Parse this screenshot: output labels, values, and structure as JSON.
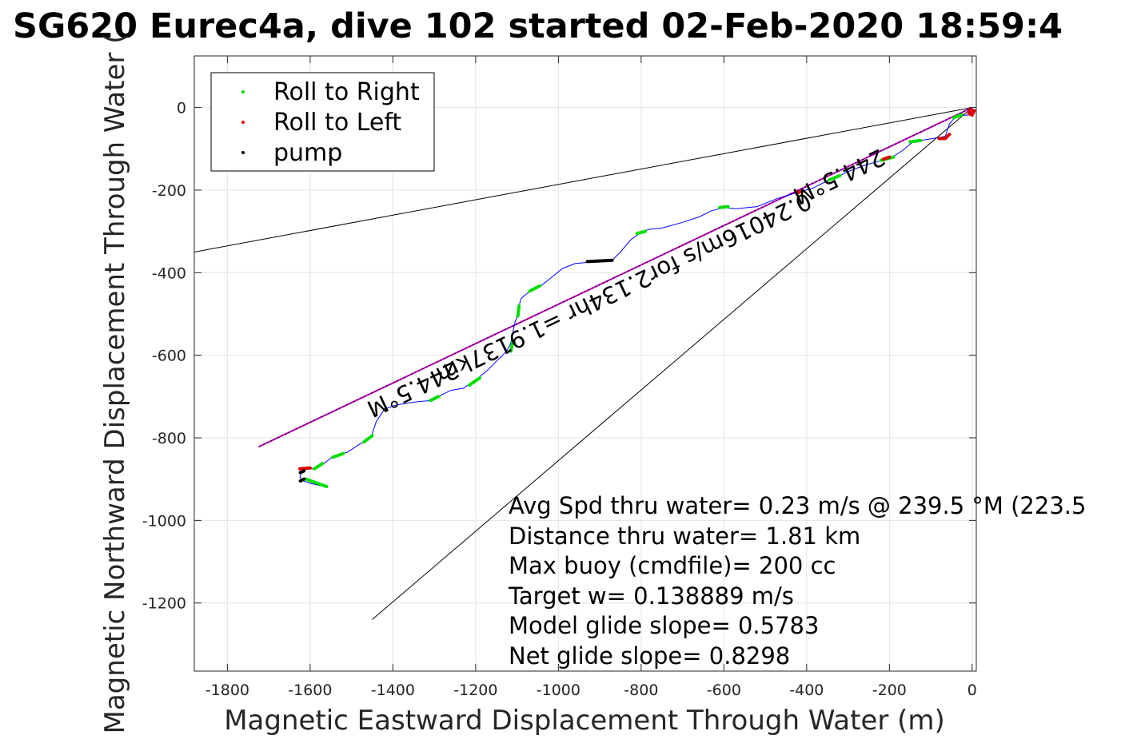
{
  "title": "SG620 Eurec4a, dive 102 started 02-Feb-2020 18:59:4",
  "chart_data": {
    "type": "line",
    "xlabel": "Magnetic Eastward Displacement Through Water (m)",
    "ylabel": "Magnetic Northward Displacement Through Water (",
    "xlim": [
      -1880,
      10
    ],
    "ylim": [
      -1365,
      125
    ],
    "xticks": [
      "-1800",
      "-1600",
      "-1400",
      "-1200",
      "-1000",
      "-800",
      "-600",
      "-400",
      "-200",
      "0"
    ],
    "yticks": [
      "0",
      "-200",
      "-400",
      "-600",
      "-800",
      "-1000",
      "-1200"
    ],
    "grid": true,
    "legend": {
      "placement": "top-left",
      "entries": [
        {
          "label": "Roll to Right",
          "color": "#00dd00"
        },
        {
          "label": "Roll to Left",
          "color": "#dd0000"
        },
        {
          "label": "pump",
          "color": "#000000"
        }
      ]
    },
    "track": {
      "color": "#0000ff",
      "points": [
        [
          0,
          -10
        ],
        [
          -10,
          -18
        ],
        [
          -30,
          -20
        ],
        [
          -45,
          -28
        ],
        [
          -55,
          -40
        ],
        [
          -60,
          -55
        ],
        [
          -65,
          -70
        ],
        [
          -95,
          -75
        ],
        [
          -125,
          -80
        ],
        [
          -145,
          -85
        ],
        [
          -170,
          -105
        ],
        [
          -200,
          -125
        ],
        [
          -225,
          -130
        ],
        [
          -260,
          -140
        ],
        [
          -300,
          -155
        ],
        [
          -320,
          -165
        ],
        [
          -345,
          -175
        ],
        [
          -385,
          -195
        ],
        [
          -430,
          -208
        ],
        [
          -470,
          -220
        ],
        [
          -520,
          -240
        ],
        [
          -570,
          -245
        ],
        [
          -600,
          -242
        ],
        [
          -630,
          -250
        ],
        [
          -660,
          -265
        ],
        [
          -700,
          -278
        ],
        [
          -750,
          -292
        ],
        [
          -780,
          -295
        ],
        [
          -800,
          -302
        ],
        [
          -825,
          -320
        ],
        [
          -850,
          -350
        ],
        [
          -870,
          -370
        ],
        [
          -905,
          -372
        ],
        [
          -930,
          -375
        ],
        [
          -960,
          -378
        ],
        [
          -990,
          -390
        ],
        [
          -1015,
          -410
        ],
        [
          -1040,
          -430
        ],
        [
          -1060,
          -440
        ],
        [
          -1075,
          -450
        ],
        [
          -1090,
          -462
        ],
        [
          -1095,
          -480
        ],
        [
          -1097,
          -500
        ],
        [
          -1105,
          -520
        ],
        [
          -1110,
          -545
        ],
        [
          -1115,
          -570
        ],
        [
          -1125,
          -590
        ],
        [
          -1145,
          -610
        ],
        [
          -1170,
          -635
        ],
        [
          -1200,
          -660
        ],
        [
          -1230,
          -680
        ],
        [
          -1260,
          -685
        ],
        [
          -1290,
          -700
        ],
        [
          -1310,
          -710
        ],
        [
          -1335,
          -712
        ],
        [
          -1360,
          -715
        ],
        [
          -1390,
          -720
        ],
        [
          -1420,
          -730
        ],
        [
          -1440,
          -760
        ],
        [
          -1450,
          -790
        ],
        [
          -1460,
          -805
        ],
        [
          -1480,
          -815
        ],
        [
          -1510,
          -835
        ],
        [
          -1545,
          -845
        ],
        [
          -1570,
          -865
        ],
        [
          -1590,
          -875
        ],
        [
          -1605,
          -872
        ],
        [
          -1620,
          -880
        ],
        [
          -1625,
          -895
        ],
        [
          -1615,
          -905
        ],
        [
          -1600,
          -910
        ],
        [
          -1580,
          -915
        ],
        [
          -1560,
          -918
        ]
      ]
    },
    "roll_right_segments": [
      [
        [
          -25,
          -17
        ],
        [
          -45,
          -25
        ]
      ],
      [
        [
          -125,
          -80
        ],
        [
          -150,
          -83
        ]
      ],
      [
        [
          -190,
          -120
        ],
        [
          -220,
          -128
        ]
      ],
      [
        [
          -320,
          -165
        ],
        [
          -345,
          -175
        ]
      ],
      [
        [
          -590,
          -240
        ],
        [
          -610,
          -242
        ]
      ],
      [
        [
          -790,
          -300
        ],
        [
          -810,
          -305
        ]
      ],
      [
        [
          -1045,
          -432
        ],
        [
          -1070,
          -445
        ]
      ],
      [
        [
          -1095,
          -480
        ],
        [
          -1098,
          -505
        ]
      ],
      [
        [
          -1110,
          -565
        ],
        [
          -1115,
          -590
        ]
      ],
      [
        [
          -1190,
          -655
        ],
        [
          -1215,
          -672
        ]
      ],
      [
        [
          -1290,
          -700
        ],
        [
          -1310,
          -710
        ]
      ],
      [
        [
          -1450,
          -795
        ],
        [
          -1470,
          -810
        ]
      ],
      [
        [
          -1520,
          -838
        ],
        [
          -1545,
          -847
        ]
      ],
      [
        [
          -1570,
          -862
        ],
        [
          -1590,
          -875
        ]
      ],
      [
        [
          -1610,
          -900
        ],
        [
          -1560,
          -918
        ]
      ]
    ],
    "roll_left_segments": [
      [
        [
          -5,
          -5
        ],
        [
          -8,
          -15
        ],
        [
          0,
          -18
        ],
        [
          5,
          -8
        ],
        [
          -5,
          -5
        ]
      ],
      [
        [
          -55,
          -65
        ],
        [
          -65,
          -75
        ],
        [
          -80,
          -75
        ]
      ],
      [
        [
          -200,
          -120
        ],
        [
          -215,
          -125
        ]
      ],
      [
        [
          -410,
          -203
        ],
        [
          -425,
          -207
        ]
      ],
      [
        [
          -1600,
          -873
        ],
        [
          -1625,
          -875
        ]
      ]
    ],
    "pump_segments": [
      [
        [
          -870,
          -370
        ],
        [
          -930,
          -373
        ]
      ],
      [
        [
          -1615,
          -880
        ],
        [
          -1625,
          -885
        ]
      ],
      [
        [
          -1615,
          -900
        ],
        [
          -1625,
          -905
        ]
      ]
    ],
    "lines": [
      {
        "name": "mean heading",
        "color": "#000000",
        "from": [
          0,
          0
        ],
        "to": [
          -1880,
          -350
        ]
      },
      {
        "name": "mean heading 2",
        "color": "#000000",
        "from": [
          0,
          0
        ],
        "to": [
          -1450,
          -1240
        ]
      },
      {
        "name": "target course",
        "color": "#cc00cc",
        "from": [
          0,
          0
        ],
        "to": [
          -1725,
          -822
        ]
      },
      {
        "name": "net course",
        "color": "#000000",
        "from": [
          0,
          0
        ],
        "to": [
          -1725,
          -822
        ]
      }
    ],
    "annotations": [
      {
        "text": "244.5°M",
        "x": -1360,
        "y": -665,
        "rotate": 154.5
      },
      {
        "text": "0.24016m/s for2.134hr =1.9137km",
        "x": -850,
        "y": -420,
        "rotate": 154.5
      },
      {
        "text": "244.5°M",
        "x": -330,
        "y": -150,
        "rotate": 154.5
      }
    ],
    "stats": [
      "Avg Spd thru water=  0.23 m/s @ 239.5 °M (223.5",
      "Distance thru water=  1.81 km",
      "Max buoy (cmdfile)= 200 cc",
      "Target w= 0.138889 m/s",
      "Model glide slope= 0.5783",
      "Net glide slope= 0.8298"
    ]
  }
}
